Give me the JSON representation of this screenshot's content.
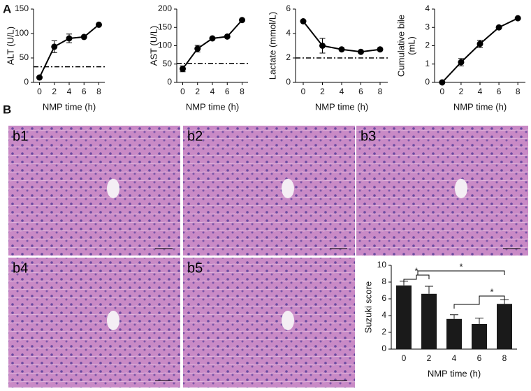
{
  "panel_labels": [
    "A",
    "B"
  ],
  "micrographs": [
    {
      "label": "b1"
    },
    {
      "label": "b2"
    },
    {
      "label": "b3"
    },
    {
      "label": "b4"
    },
    {
      "label": "b5"
    }
  ],
  "chart_data": [
    {
      "type": "line",
      "xlabel": "NMP time (h)",
      "ylabel": [
        "ALT (U/L)"
      ],
      "x": [
        0,
        2,
        4,
        6,
        8
      ],
      "values": [
        10,
        73,
        90,
        93,
        118
      ],
      "errors": [
        0,
        12,
        9,
        0,
        0
      ],
      "color": "#000000",
      "xlim": [
        -0.8,
        8.8
      ],
      "xticks": [
        0,
        2,
        4,
        6,
        8
      ],
      "ylim": [
        0,
        150
      ],
      "yticks": [
        0,
        50,
        100,
        150
      ],
      "reference_line": 32
    },
    {
      "type": "line",
      "xlabel": "NMP time (h)",
      "ylabel": [
        "AST (U/L)"
      ],
      "x": [
        0,
        2,
        4,
        6,
        8
      ],
      "values": [
        37,
        92,
        120,
        125,
        170
      ],
      "errors": [
        8,
        9,
        0,
        0,
        0
      ],
      "color": "#000000",
      "xlim": [
        -0.8,
        8.8
      ],
      "xticks": [
        0,
        2,
        4,
        6,
        8
      ],
      "ylim": [
        0,
        200
      ],
      "yticks": [
        0,
        50,
        100,
        150,
        200
      ],
      "reference_line": 52
    },
    {
      "type": "line",
      "xlabel": "NMP time (h)",
      "ylabel": [
        "Lactate (mmol/L)"
      ],
      "x": [
        0,
        2,
        4,
        6,
        8
      ],
      "values": [
        5,
        3,
        2.7,
        2.5,
        2.7
      ],
      "errors": [
        0,
        0.6,
        0,
        0,
        0.1
      ],
      "color": "#000000",
      "xlim": [
        -0.8,
        8.8
      ],
      "xticks": [
        0,
        2,
        4,
        6,
        8
      ],
      "ylim": [
        0,
        6
      ],
      "yticks": [
        0,
        2,
        4,
        6
      ],
      "reference_line": 2
    },
    {
      "type": "line",
      "xlabel": "NMP time (h)",
      "ylabel": [
        "Cumulative bile",
        "(mL)"
      ],
      "x": [
        0,
        2,
        4,
        6,
        8
      ],
      "values": [
        0,
        1.1,
        2.1,
        3,
        3.5
      ],
      "errors": [
        0,
        0.2,
        0.2,
        0,
        0
      ],
      "color": "#000000",
      "xlim": [
        -0.8,
        8.8
      ],
      "xticks": [
        0,
        2,
        4,
        6,
        8
      ],
      "ylim": [
        0,
        4
      ],
      "yticks": [
        0,
        1,
        2,
        3,
        4
      ]
    },
    {
      "type": "bar",
      "xlabel": "NMP time (h)",
      "ylabel": [
        "Suzuki score"
      ],
      "categories": [
        "0",
        "2",
        "4",
        "6",
        "8"
      ],
      "values": [
        7.6,
        6.6,
        3.6,
        3.0,
        5.4
      ],
      "errors": [
        0.5,
        0.9,
        0.5,
        0.7,
        0.5
      ],
      "color": "#1a1a1a",
      "ylim": [
        0,
        10
      ],
      "yticks": [
        0,
        2,
        4,
        6,
        8,
        10
      ],
      "annotations": [
        "*",
        "*",
        "*"
      ]
    }
  ]
}
